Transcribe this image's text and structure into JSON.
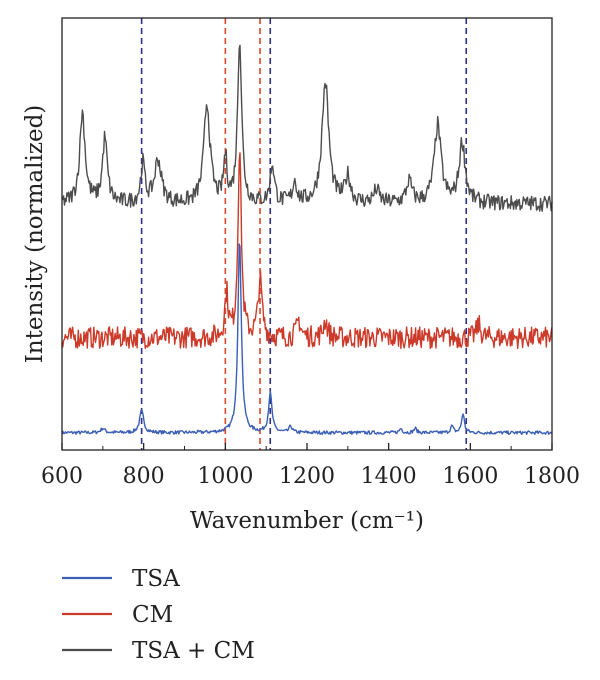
{
  "chart_data": {
    "type": "line",
    "title": "",
    "xlabel": "Wavenumber (cm⁻¹)",
    "ylabel": "Intensity (normalized)",
    "xlim": [
      600,
      1800
    ],
    "xticks": [
      600,
      800,
      1000,
      1200,
      1400,
      1600,
      1800
    ],
    "yticks": [],
    "grid": false,
    "legend_position": "bottom",
    "series": [
      {
        "name": "TSA",
        "color": "#3b5fb5",
        "baseline": 0.04,
        "noise": 0.004,
        "peaks": [
          {
            "x": 700,
            "h": 0.01,
            "w": 6
          },
          {
            "x": 795,
            "h": 0.05,
            "w": 6
          },
          {
            "x": 1035,
            "h": 0.45,
            "w": 5
          },
          {
            "x": 1110,
            "h": 0.09,
            "w": 5
          },
          {
            "x": 1160,
            "h": 0.015,
            "w": 4
          },
          {
            "x": 1430,
            "h": 0.01,
            "w": 4
          },
          {
            "x": 1465,
            "h": 0.01,
            "w": 4
          },
          {
            "x": 1555,
            "h": 0.015,
            "w": 4
          },
          {
            "x": 1582,
            "h": 0.045,
            "w": 4
          }
        ]
      },
      {
        "name": "CM",
        "color": "#cc3a2a",
        "baseline": 0.26,
        "noise": 0.025,
        "peaks": [
          {
            "x": 1003,
            "h": 0.1,
            "w": 5
          },
          {
            "x": 1035,
            "h": 0.44,
            "w": 5
          },
          {
            "x": 1085,
            "h": 0.13,
            "w": 6
          },
          {
            "x": 1180,
            "h": 0.04,
            "w": 6
          },
          {
            "x": 1245,
            "h": 0.04,
            "w": 6
          },
          {
            "x": 1620,
            "h": 0.03,
            "w": 6
          }
        ]
      },
      {
        "name": "TSA + CM",
        "color": "#4d4d4d",
        "baseline": 0.57,
        "noise": 0.018,
        "peaks": [
          {
            "x": 650,
            "h": 0.21,
            "w": 8
          },
          {
            "x": 705,
            "h": 0.15,
            "w": 7
          },
          {
            "x": 798,
            "h": 0.09,
            "w": 6
          },
          {
            "x": 835,
            "h": 0.1,
            "w": 10
          },
          {
            "x": 955,
            "h": 0.23,
            "w": 9
          },
          {
            "x": 1000,
            "h": 0.1,
            "w": 5
          },
          {
            "x": 1035,
            "h": 0.38,
            "w": 6
          },
          {
            "x": 1115,
            "h": 0.09,
            "w": 6
          },
          {
            "x": 1170,
            "h": 0.05,
            "w": 6
          },
          {
            "x": 1245,
            "h": 0.28,
            "w": 10
          },
          {
            "x": 1300,
            "h": 0.06,
            "w": 8
          },
          {
            "x": 1370,
            "h": 0.03,
            "w": 8
          },
          {
            "x": 1450,
            "h": 0.05,
            "w": 8
          },
          {
            "x": 1520,
            "h": 0.18,
            "w": 10
          },
          {
            "x": 1580,
            "h": 0.14,
            "w": 9
          }
        ]
      }
    ],
    "reference_lines": [
      {
        "x": 795,
        "color": "#2e2e8c"
      },
      {
        "x": 1000,
        "color": "#d94a2a"
      },
      {
        "x": 1085,
        "color": "#d94a2a"
      },
      {
        "x": 1110,
        "color": "#2e2e8c"
      },
      {
        "x": 1590,
        "color": "#2e2e8c"
      }
    ]
  }
}
